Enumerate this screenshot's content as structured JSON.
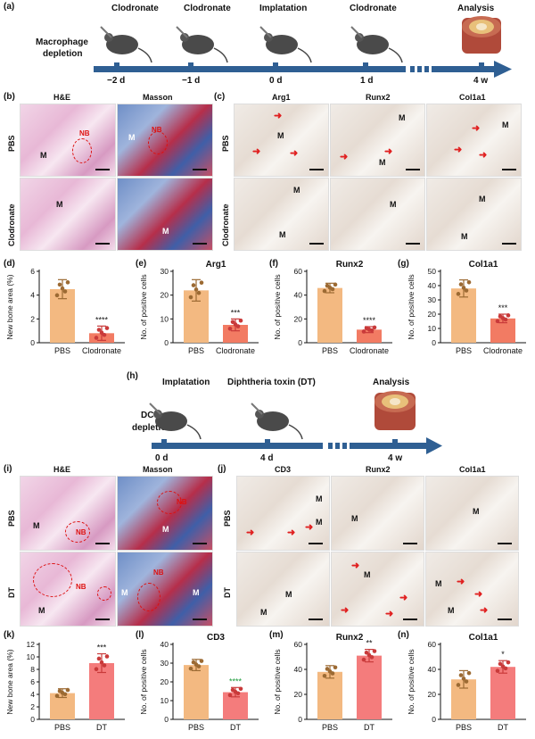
{
  "panel_a": {
    "label": "(a)",
    "row_label": [
      "Macrophage",
      "depletion"
    ],
    "steps": [
      "Clodronate",
      "Clodronate",
      "Implatation",
      "Clodronate",
      "Analysis"
    ],
    "times": [
      "−2 d",
      "−1 d",
      "0 d",
      "1 d",
      "4 w"
    ]
  },
  "panel_b": {
    "label": "(b)",
    "cols": [
      "H&E",
      "Masson"
    ],
    "rows": [
      "PBS",
      "Clodronate"
    ],
    "m": "M",
    "nb": "NB"
  },
  "panel_c": {
    "label": "(c)",
    "cols": [
      "Arg1",
      "Runx2",
      "Col1a1"
    ],
    "rows": [
      "PBS",
      "Clodronate"
    ],
    "m": "M"
  },
  "panel_h": {
    "label": "(h)",
    "row_label": [
      "DC",
      "depletion"
    ],
    "steps": [
      "Implatation",
      "Diphtheria toxin (DT)",
      "Analysis"
    ],
    "times": [
      "0 d",
      "4 d",
      "4 w"
    ]
  },
  "panel_i": {
    "label": "(i)",
    "cols": [
      "H&E",
      "Masson"
    ],
    "rows": [
      "PBS",
      "DT"
    ],
    "m": "M",
    "nb": "NB"
  },
  "panel_j": {
    "label": "(j)",
    "cols": [
      "CD3",
      "Runx2",
      "Col1a1"
    ],
    "rows": [
      "PBS",
      "DT"
    ],
    "m": "M"
  },
  "colors": {
    "pbs": "#f3b981",
    "pbs_dot": "#9c6a33",
    "treat_d": "#f27b63",
    "treat_k": "#f47c7c",
    "treat_dot": "#c93a3a",
    "timeline": "#2f5f93",
    "arrow": "#e02020"
  },
  "chart_data": [
    {
      "panel": "(d)",
      "type": "bar",
      "title": "",
      "ylabel": "New bone area (%)",
      "categories": [
        "PBS",
        "Clodronate"
      ],
      "values": [
        4.5,
        0.8
      ],
      "errors": [
        0.8,
        0.6
      ],
      "ylim": [
        0,
        6
      ],
      "yticks": [
        0,
        2,
        4,
        6
      ],
      "significance": "****"
    },
    {
      "panel": "(e)",
      "type": "bar",
      "title": "Arg1",
      "ylabel": "No. of positive cells",
      "categories": [
        "PBS",
        "Clodronate"
      ],
      "values": [
        22,
        7.5
      ],
      "errors": [
        4.5,
        2.5
      ],
      "ylim": [
        0,
        30
      ],
      "yticks": [
        0,
        10,
        20,
        30
      ],
      "significance": "***"
    },
    {
      "panel": "(f)",
      "type": "bar",
      "title": "Runx2",
      "ylabel": "No. of positive cells",
      "categories": [
        "PBS",
        "Clodronate"
      ],
      "values": [
        46,
        11
      ],
      "errors": [
        4,
        2.5
      ],
      "ylim": [
        0,
        60
      ],
      "yticks": [
        0,
        20,
        40,
        60
      ],
      "significance": "****"
    },
    {
      "panel": "(g)",
      "type": "bar",
      "title": "Col1a1",
      "ylabel": "No. of positive cells",
      "categories": [
        "PBS",
        "Clodronate"
      ],
      "values": [
        38,
        17
      ],
      "errors": [
        6,
        3
      ],
      "ylim": [
        0,
        50
      ],
      "yticks": [
        0,
        10,
        20,
        30,
        40,
        50
      ],
      "significance": "***"
    },
    {
      "panel": "(k)",
      "type": "bar",
      "title": "",
      "ylabel": "New bone area (%)",
      "categories": [
        "PBS",
        "DT"
      ],
      "values": [
        4.2,
        9.0
      ],
      "errors": [
        0.7,
        1.5
      ],
      "ylim": [
        0,
        12
      ],
      "yticks": [
        0,
        2,
        4,
        6,
        8,
        10,
        12
      ],
      "significance": "***"
    },
    {
      "panel": "(l)",
      "type": "bar",
      "title": "CD3",
      "ylabel": "No. of positive cells",
      "categories": [
        "PBS",
        "DT"
      ],
      "values": [
        29,
        14.5
      ],
      "errors": [
        3,
        2.5
      ],
      "ylim": [
        0,
        40
      ],
      "yticks": [
        0,
        10,
        20,
        30,
        40
      ],
      "significance": "****"
    },
    {
      "panel": "(m)",
      "type": "bar",
      "title": "Runx2",
      "ylabel": "No. of positive cells",
      "categories": [
        "PBS",
        "DT"
      ],
      "values": [
        38,
        51
      ],
      "errors": [
        5,
        5
      ],
      "ylim": [
        0,
        60
      ],
      "yticks": [
        0,
        20,
        40,
        60
      ],
      "significance": "**"
    },
    {
      "panel": "(n)",
      "type": "bar",
      "title": "Col1a1",
      "ylabel": "No. of positive cells",
      "categories": [
        "PBS",
        "DT"
      ],
      "values": [
        32,
        42
      ],
      "errors": [
        7,
        5
      ],
      "ylim": [
        0,
        60
      ],
      "yticks": [
        0,
        20,
        40,
        60
      ],
      "significance": "*"
    }
  ]
}
